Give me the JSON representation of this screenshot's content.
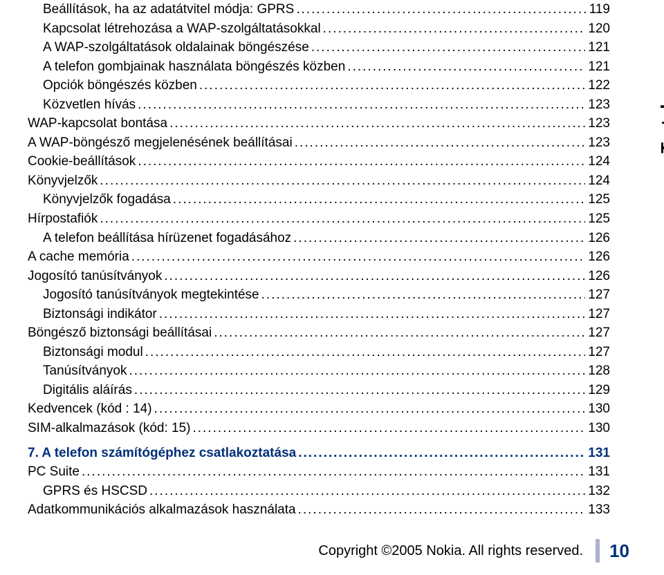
{
  "sideLabel": "Tartalom",
  "colors": {
    "sectionColor": "#002f7a",
    "textColor": "#000000",
    "sepColor": "#aab3c9",
    "background": "#ffffff"
  },
  "typography": {
    "bodyFontSize": 19,
    "sectionFontSize": 19,
    "sideLabelFontSize": 26,
    "footerTextFontSize": 20,
    "footerPageFontSize": 26,
    "lineHeight": 1.45
  },
  "entries": [
    {
      "label": "Beállítások, ha az adatátvitel módja: GPRS",
      "page": "119",
      "indent": 1,
      "section": false
    },
    {
      "label": "Kapcsolat létrehozása a WAP-szolgáltatásokkal",
      "page": "120",
      "indent": 1,
      "section": false
    },
    {
      "label": "A WAP-szolgáltatások oldalainak böngészése",
      "page": "121",
      "indent": 1,
      "section": false
    },
    {
      "label": "A telefon gombjainak használata böngészés közben",
      "page": "121",
      "indent": 1,
      "section": false
    },
    {
      "label": "Opciók böngészés közben",
      "page": "122",
      "indent": 1,
      "section": false
    },
    {
      "label": "Közvetlen hívás",
      "page": "123",
      "indent": 1,
      "section": false
    },
    {
      "label": "WAP-kapcsolat bontása",
      "page": "123",
      "indent": 0,
      "section": false
    },
    {
      "label": "A WAP-böngésző megjelenésének beállításai",
      "page": "123",
      "indent": 0,
      "section": false
    },
    {
      "label": "Cookie-beállítások",
      "page": "124",
      "indent": 0,
      "section": false
    },
    {
      "label": "Könyvjelzők",
      "page": "124",
      "indent": 0,
      "section": false
    },
    {
      "label": "Könyvjelzők fogadása",
      "page": "125",
      "indent": 1,
      "section": false
    },
    {
      "label": "Hírpostafiók",
      "page": "125",
      "indent": 0,
      "section": false
    },
    {
      "label": "A telefon beállítása hírüzenet fogadásához",
      "page": "126",
      "indent": 1,
      "section": false
    },
    {
      "label": "A cache memória",
      "page": "126",
      "indent": 0,
      "section": false
    },
    {
      "label": "Jogosító tanúsítványok",
      "page": "126",
      "indent": 0,
      "section": false
    },
    {
      "label": "Jogosító tanúsítványok megtekintése",
      "page": "127",
      "indent": 1,
      "section": false
    },
    {
      "label": "Biztonsági indikátor",
      "page": "127",
      "indent": 1,
      "section": false
    },
    {
      "label": "Böngésző biztonsági beállításai",
      "page": "127",
      "indent": 0,
      "section": false
    },
    {
      "label": "Biztonsági modul",
      "page": "127",
      "indent": 1,
      "section": false
    },
    {
      "label": "Tanúsítványok",
      "page": "128",
      "indent": 1,
      "section": false
    },
    {
      "label": "Digitális aláírás",
      "page": "129",
      "indent": 1,
      "section": false
    },
    {
      "label": "Kedvencek (kód : 14)",
      "page": "130",
      "indent": 0,
      "section": false
    },
    {
      "label": "SIM-alkalmazások (kód: 15)",
      "page": "130",
      "indent": 0,
      "section": false
    },
    {
      "label": "7. A telefon számítógéphez csatlakoztatása",
      "page": "131",
      "indent": 0,
      "section": true
    },
    {
      "label": "PC Suite",
      "page": "131",
      "indent": 0,
      "section": false
    },
    {
      "label": "GPRS és HSCSD",
      "page": "132",
      "indent": 1,
      "section": false
    },
    {
      "label": "Adatkommunikációs alkalmazások használata",
      "page": "133",
      "indent": 0,
      "section": false
    }
  ],
  "footer": {
    "copyright": "Copyright ©2005 Nokia. All rights reserved.",
    "pageNumber": "10"
  }
}
